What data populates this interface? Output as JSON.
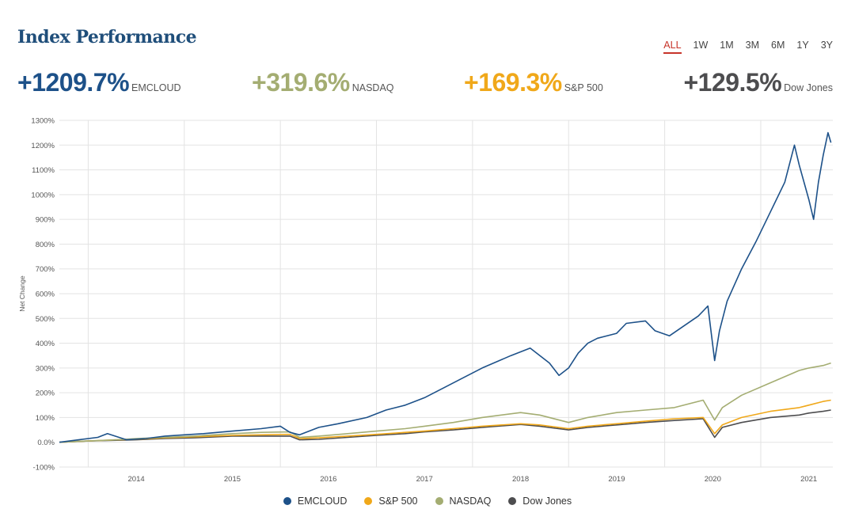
{
  "header": {
    "title": "Index Performance"
  },
  "ranges": {
    "options": [
      "ALL",
      "1W",
      "1M",
      "3M",
      "6M",
      "1Y",
      "3Y"
    ],
    "selected": "ALL"
  },
  "summary": [
    {
      "value": "+1209.7%",
      "name": "EMCLOUD",
      "color": "#1d5189"
    },
    {
      "value": "+319.6%",
      "name": "NASDAQ",
      "color": "#a4ad72"
    },
    {
      "value": "+169.3%",
      "name": "S&P 500",
      "color": "#f0a81a"
    },
    {
      "value": "+129.5%",
      "name": "Dow Jones",
      "color": "#4d4d4f"
    }
  ],
  "legend": [
    {
      "name": "EMCLOUD",
      "color": "#1d5189"
    },
    {
      "name": "S&P 500",
      "color": "#f0a81a"
    },
    {
      "name": "NASDAQ",
      "color": "#a4ad72"
    },
    {
      "name": "Dow Jones",
      "color": "#4d4d4f"
    }
  ],
  "chart_data": {
    "type": "line",
    "ylabel": "Net Change",
    "ylim": [
      -100,
      1300
    ],
    "yticks": [
      -100,
      0,
      100,
      200,
      300,
      400,
      500,
      600,
      700,
      800,
      900,
      1000,
      1100,
      1200,
      1300
    ],
    "ytick_labels": [
      "-100%",
      "0.0%",
      "100%",
      "200%",
      "300%",
      "400%",
      "500%",
      "600%",
      "700%",
      "800%",
      "900%",
      "1000%",
      "1100%",
      "1200%",
      "1300%"
    ],
    "x_range": [
      2013.2,
      2021.25
    ],
    "xticks": [
      2014,
      2015,
      2016,
      2017,
      2018,
      2019,
      2020,
      2021
    ],
    "xtick_labels": [
      "2014",
      "2015",
      "2016",
      "2017",
      "2018",
      "2019",
      "2020",
      "2021"
    ],
    "grid": true,
    "legend_position": "bottom",
    "series": [
      {
        "name": "EMCLOUD",
        "color": "#1d5189",
        "x": [
          2013.2,
          2013.4,
          2013.6,
          2013.7,
          2013.9,
          2014.1,
          2014.3,
          2014.5,
          2014.7,
          2015.0,
          2015.3,
          2015.5,
          2015.6,
          2015.7,
          2015.9,
          2016.1,
          2016.4,
          2016.6,
          2016.8,
          2017.0,
          2017.2,
          2017.4,
          2017.6,
          2017.9,
          2018.1,
          2018.3,
          2018.4,
          2018.5,
          2018.6,
          2018.7,
          2018.8,
          2019.0,
          2019.1,
          2019.3,
          2019.4,
          2019.55,
          2019.7,
          2019.85,
          2019.95,
          2020.02,
          2020.07,
          2020.15,
          2020.3,
          2020.45,
          2020.6,
          2020.75,
          2020.85,
          2020.9,
          2021.0,
          2021.05,
          2021.1,
          2021.15,
          2021.2,
          2021.23
        ],
        "y": [
          0,
          10,
          20,
          35,
          10,
          15,
          25,
          30,
          35,
          45,
          55,
          65,
          40,
          30,
          60,
          75,
          100,
          130,
          150,
          180,
          220,
          260,
          300,
          350,
          380,
          320,
          270,
          300,
          360,
          400,
          420,
          440,
          480,
          490,
          450,
          430,
          470,
          510,
          550,
          330,
          450,
          570,
          700,
          810,
          930,
          1050,
          1200,
          1120,
          980,
          900,
          1050,
          1160,
          1250,
          1210
        ]
      },
      {
        "name": "NASDAQ",
        "color": "#a4ad72",
        "x": [
          2013.2,
          2013.5,
          2013.8,
          2014.0,
          2014.3,
          2014.6,
          2015.0,
          2015.3,
          2015.6,
          2015.7,
          2015.9,
          2016.2,
          2016.5,
          2016.8,
          2017.0,
          2017.3,
          2017.6,
          2018.0,
          2018.2,
          2018.5,
          2018.7,
          2019.0,
          2019.3,
          2019.6,
          2019.9,
          2020.02,
          2020.1,
          2020.3,
          2020.6,
          2020.9,
          2021.0,
          2021.15,
          2021.23
        ],
        "y": [
          0,
          5,
          10,
          15,
          20,
          25,
          35,
          40,
          42,
          20,
          25,
          35,
          45,
          55,
          65,
          80,
          100,
          120,
          110,
          80,
          100,
          120,
          130,
          140,
          170,
          90,
          140,
          190,
          240,
          290,
          300,
          310,
          320
        ]
      },
      {
        "name": "S&P 500",
        "color": "#f0a81a",
        "x": [
          2013.2,
          2013.5,
          2013.8,
          2014.0,
          2014.3,
          2014.6,
          2015.0,
          2015.3,
          2015.6,
          2015.7,
          2015.9,
          2016.2,
          2016.5,
          2016.8,
          2017.0,
          2017.3,
          2017.6,
          2018.0,
          2018.2,
          2018.5,
          2018.7,
          2019.0,
          2019.3,
          2019.6,
          2019.9,
          2020.02,
          2020.1,
          2020.3,
          2020.6,
          2020.9,
          2021.0,
          2021.15,
          2021.23
        ],
        "y": [
          0,
          5,
          10,
          12,
          18,
          22,
          28,
          30,
          32,
          15,
          18,
          25,
          32,
          40,
          45,
          55,
          65,
          75,
          70,
          55,
          65,
          75,
          85,
          95,
          100,
          35,
          70,
          100,
          125,
          140,
          150,
          165,
          170
        ]
      },
      {
        "name": "Dow Jones",
        "color": "#4d4d4f",
        "x": [
          2013.2,
          2013.5,
          2013.8,
          2014.0,
          2014.3,
          2014.6,
          2015.0,
          2015.3,
          2015.6,
          2015.7,
          2015.9,
          2016.2,
          2016.5,
          2016.8,
          2017.0,
          2017.3,
          2017.6,
          2018.0,
          2018.2,
          2018.5,
          2018.7,
          2019.0,
          2019.3,
          2019.6,
          2019.9,
          2020.02,
          2020.1,
          2020.3,
          2020.6,
          2020.9,
          2021.0,
          2021.15,
          2021.23
        ],
        "y": [
          0,
          5,
          8,
          10,
          15,
          18,
          25,
          25,
          25,
          10,
          12,
          20,
          28,
          35,
          42,
          50,
          60,
          72,
          65,
          50,
          60,
          70,
          80,
          88,
          95,
          20,
          60,
          80,
          100,
          110,
          118,
          125,
          130
        ]
      }
    ]
  }
}
